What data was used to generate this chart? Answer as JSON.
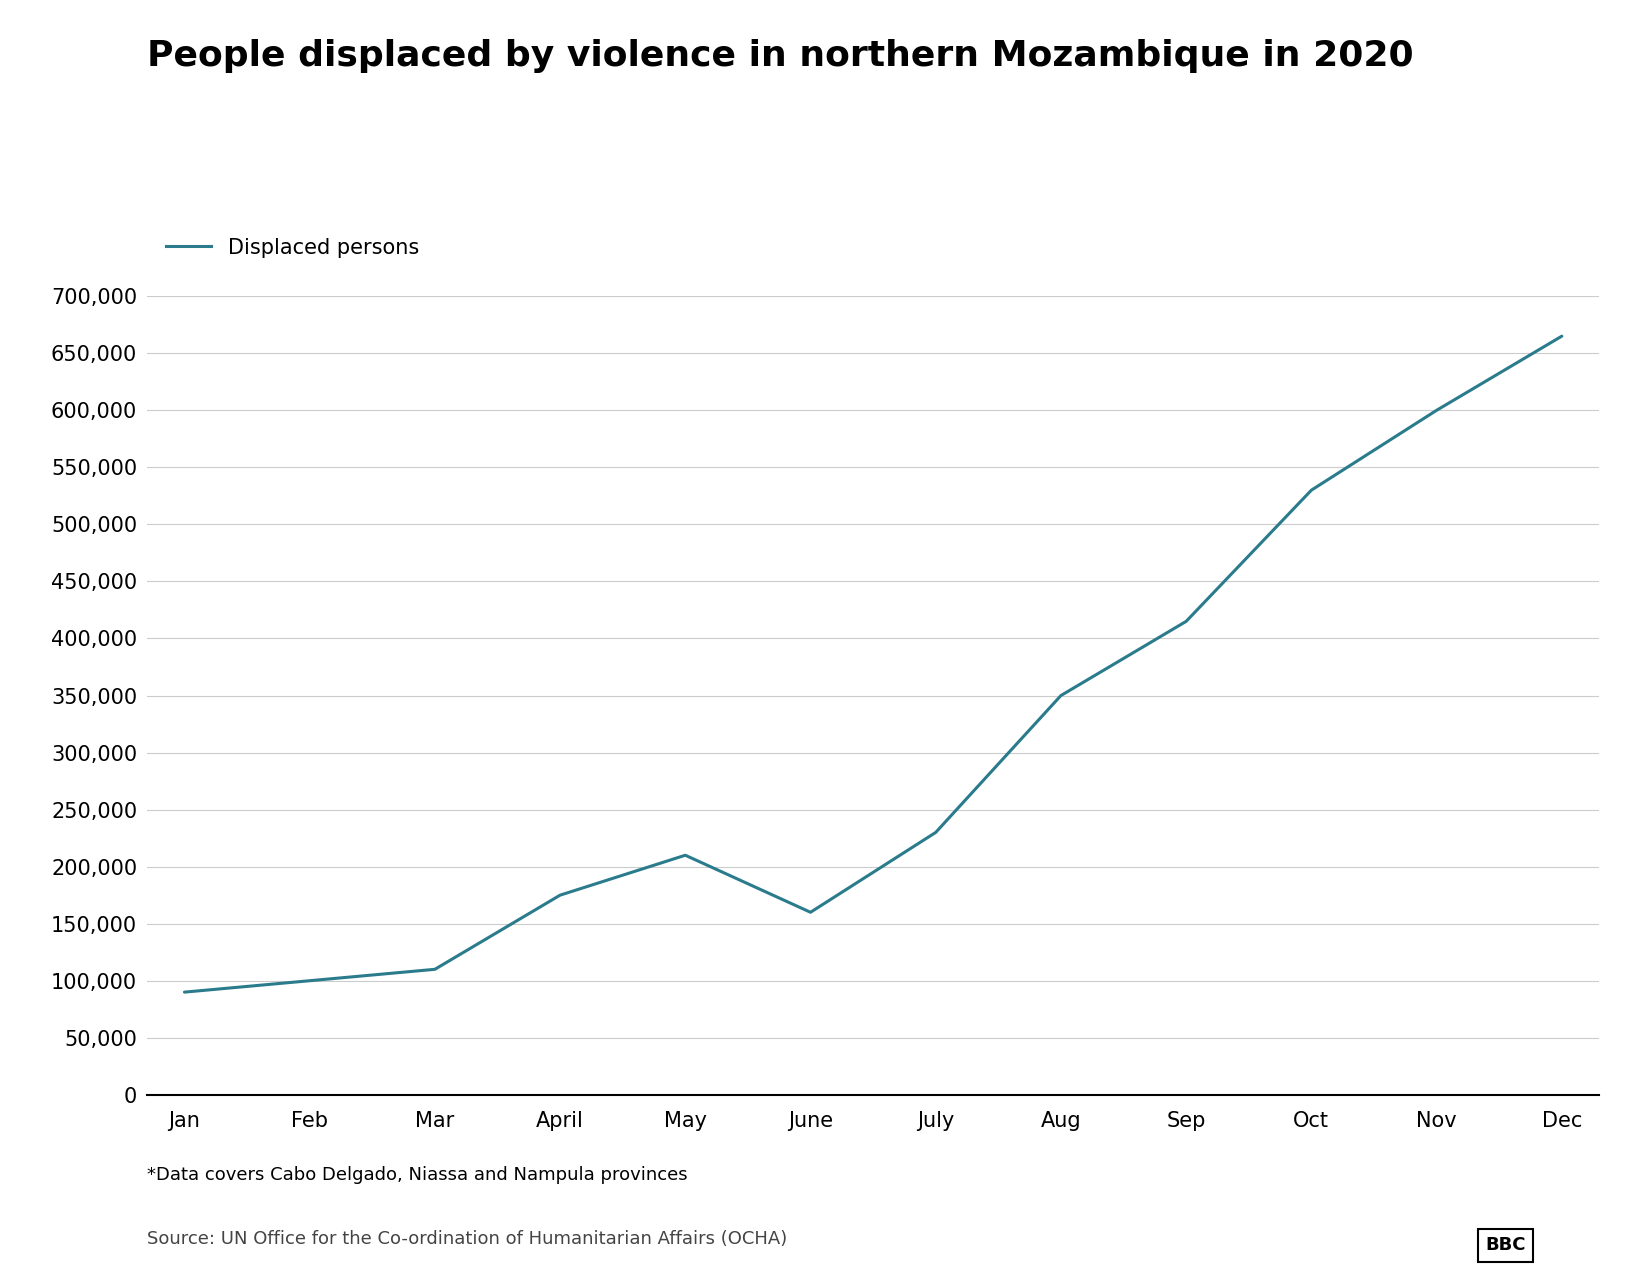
{
  "title": "People displaced by violence in northern Mozambique in 2020",
  "legend_label": "Displaced persons",
  "months": [
    "Jan",
    "Feb",
    "Mar",
    "April",
    "May",
    "June",
    "July",
    "Aug",
    "Sep",
    "Oct",
    "Nov",
    "Dec"
  ],
  "values": [
    90000,
    100000,
    110000,
    175000,
    210000,
    160000,
    230000,
    350000,
    415000,
    530000,
    600000,
    665000
  ],
  "ylim": [
    0,
    700000
  ],
  "yticks": [
    0,
    50000,
    100000,
    150000,
    200000,
    250000,
    300000,
    350000,
    400000,
    450000,
    500000,
    550000,
    600000,
    650000,
    700000
  ],
  "line_color": "#2a7b8c",
  "line_width": 2.2,
  "bg_color": "#ffffff",
  "plot_bg_color": "#ffffff",
  "grid_color": "#cccccc",
  "title_fontsize": 26,
  "tick_fontsize": 15,
  "legend_fontsize": 15,
  "footnote": "*Data covers Cabo Delgado, Niassa and Nampula provinces",
  "source": "Source: UN Office for the Co-ordination of Humanitarian Affairs (OCHA)",
  "footnote_fontsize": 13,
  "source_fontsize": 13
}
